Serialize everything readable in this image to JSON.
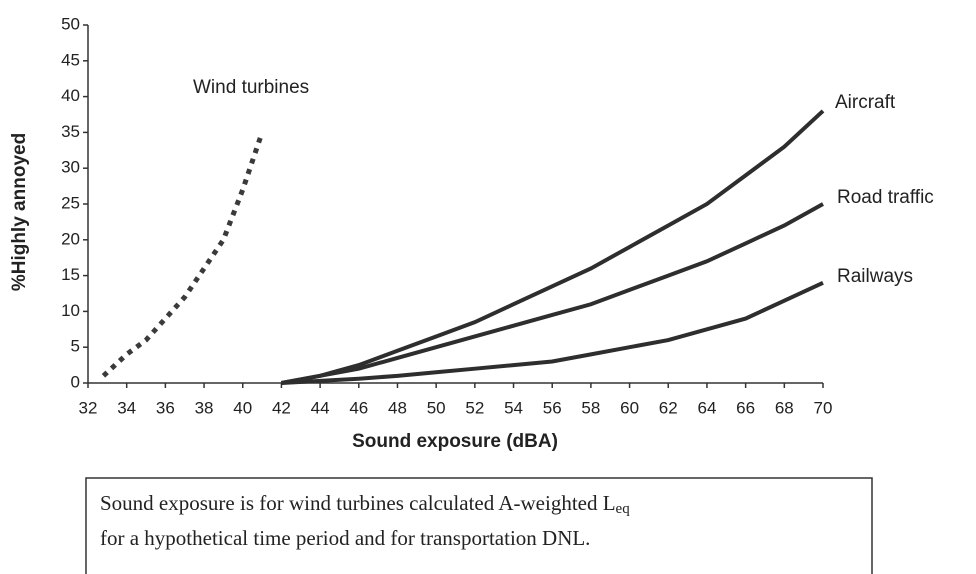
{
  "chart_data": {
    "type": "line",
    "xlabel": "Sound exposure (dBA)",
    "ylabel": "%Highly annoyed",
    "xlim": [
      32,
      70
    ],
    "xticks": [
      32,
      34,
      36,
      38,
      40,
      42,
      44,
      46,
      48,
      50,
      52,
      54,
      56,
      58,
      60,
      62,
      64,
      66,
      68,
      70
    ],
    "ylim": [
      0,
      50
    ],
    "yticks": [
      0,
      5,
      10,
      15,
      20,
      25,
      30,
      35,
      40,
      45,
      50
    ],
    "series": [
      {
        "name": "Wind turbines",
        "color": "#3a3a3a",
        "dashed": true,
        "x": [
          32.8,
          34,
          35,
          36,
          37,
          38,
          39,
          40,
          41
        ],
        "values": [
          1,
          4,
          6,
          9,
          12,
          16,
          20,
          27,
          35
        ]
      },
      {
        "name": "Aircraft",
        "color": "#2e2e2e",
        "dashed": false,
        "x": [
          42,
          44,
          46,
          48,
          50,
          52,
          54,
          56,
          58,
          60,
          62,
          64,
          66,
          68,
          70
        ],
        "values": [
          0,
          1,
          2.5,
          4.5,
          6.5,
          8.5,
          11,
          13.5,
          16,
          19,
          22,
          25,
          29,
          33,
          38
        ]
      },
      {
        "name": "Road traffic",
        "color": "#2e2e2e",
        "dashed": false,
        "x": [
          42,
          44,
          46,
          48,
          50,
          52,
          54,
          56,
          58,
          60,
          62,
          64,
          66,
          68,
          70
        ],
        "values": [
          0,
          1,
          2,
          3.5,
          5,
          6.5,
          8,
          9.5,
          11,
          13,
          15,
          17,
          19.5,
          22,
          25
        ]
      },
      {
        "name": "Railways",
        "color": "#2e2e2e",
        "dashed": false,
        "x": [
          42,
          44,
          46,
          48,
          50,
          52,
          54,
          56,
          58,
          60,
          62,
          64,
          66,
          68,
          70
        ],
        "values": [
          0,
          0.3,
          0.6,
          1,
          1.5,
          2,
          2.5,
          3,
          4,
          5,
          6,
          7.5,
          9,
          11.5,
          14
        ]
      }
    ]
  },
  "caption": {
    "text1": "Sound exposure is for wind turbines calculated A-weighted L",
    "sub": "eq",
    "text2": "for a hypothetical time period and for transportation DNL."
  }
}
